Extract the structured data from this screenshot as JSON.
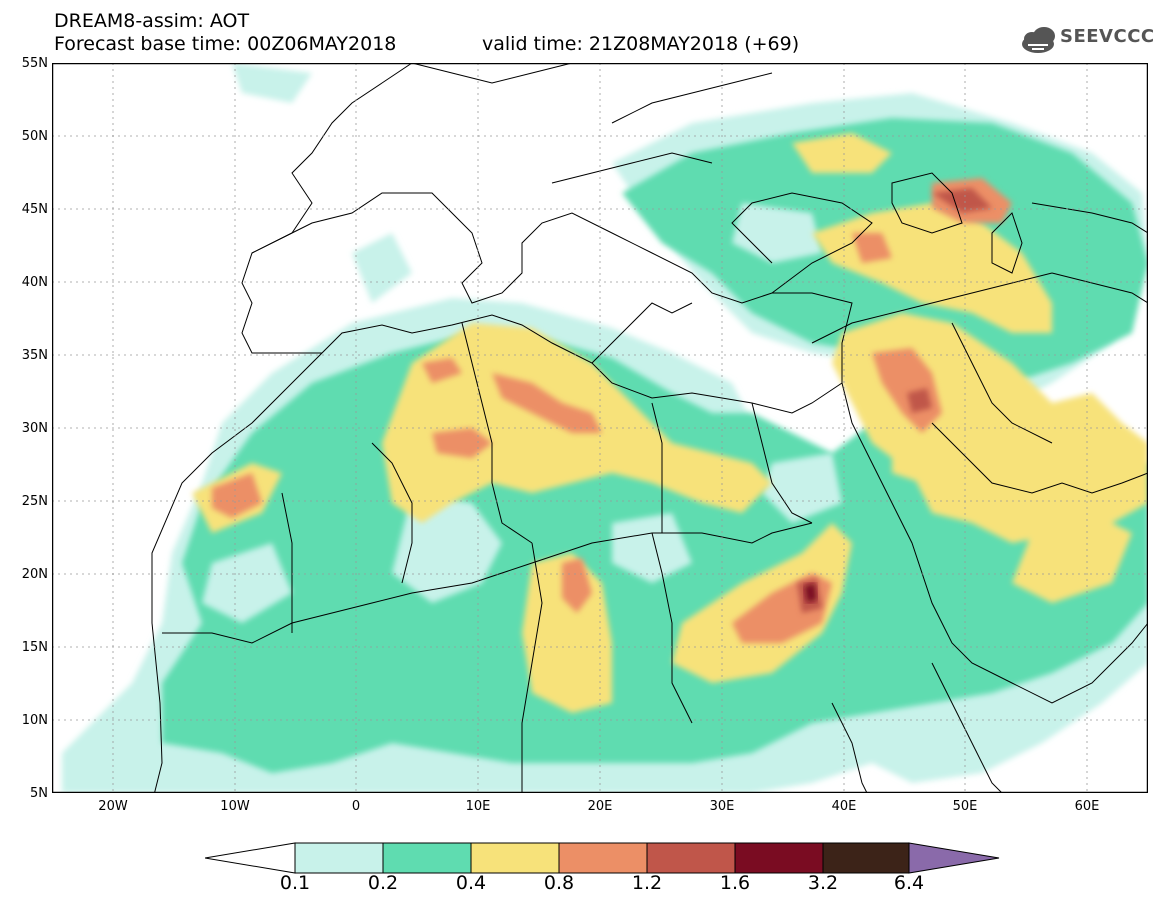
{
  "header": {
    "title_line_1": "DREAM8-assim: AOT",
    "base_time": "Forecast base time: 00Z06MAY2018",
    "valid_time": "valid time: 21Z08MAY2018 (+69)",
    "logo_text": "SEEVCCC"
  },
  "map": {
    "lat_labels": [
      "55N",
      "50N",
      "45N",
      "40N",
      "35N",
      "30N",
      "25N",
      "20N",
      "15N",
      "10N",
      "5N"
    ],
    "lon_labels": [
      "20W",
      "10W",
      "0",
      "10E",
      "20E",
      "30E",
      "40E",
      "50E",
      "60E"
    ],
    "lat_range": [
      5,
      55
    ],
    "lon_range": [
      -25,
      65
    ],
    "grid": true
  },
  "colorbar": {
    "thresholds": [
      "0.1",
      "0.2",
      "0.4",
      "0.8",
      "1.2",
      "1.6",
      "3.2",
      "6.4"
    ],
    "colors": [
      "#ffffff",
      "#c8f2ea",
      "#5fdcb0",
      "#f7e27a",
      "#ec8f66",
      "#c0564a",
      "#7a0c22",
      "#3c2318",
      "#8a6aaa"
    ]
  },
  "chart_data": {
    "type": "heatmap",
    "title": "DREAM8-assim: AOT",
    "variable": "AOT",
    "levels": [
      0.1,
      0.2,
      0.4,
      0.8,
      1.2,
      1.6,
      3.2,
      6.4
    ],
    "xlim": [
      -25,
      65
    ],
    "ylim": [
      5,
      55
    ]
  }
}
